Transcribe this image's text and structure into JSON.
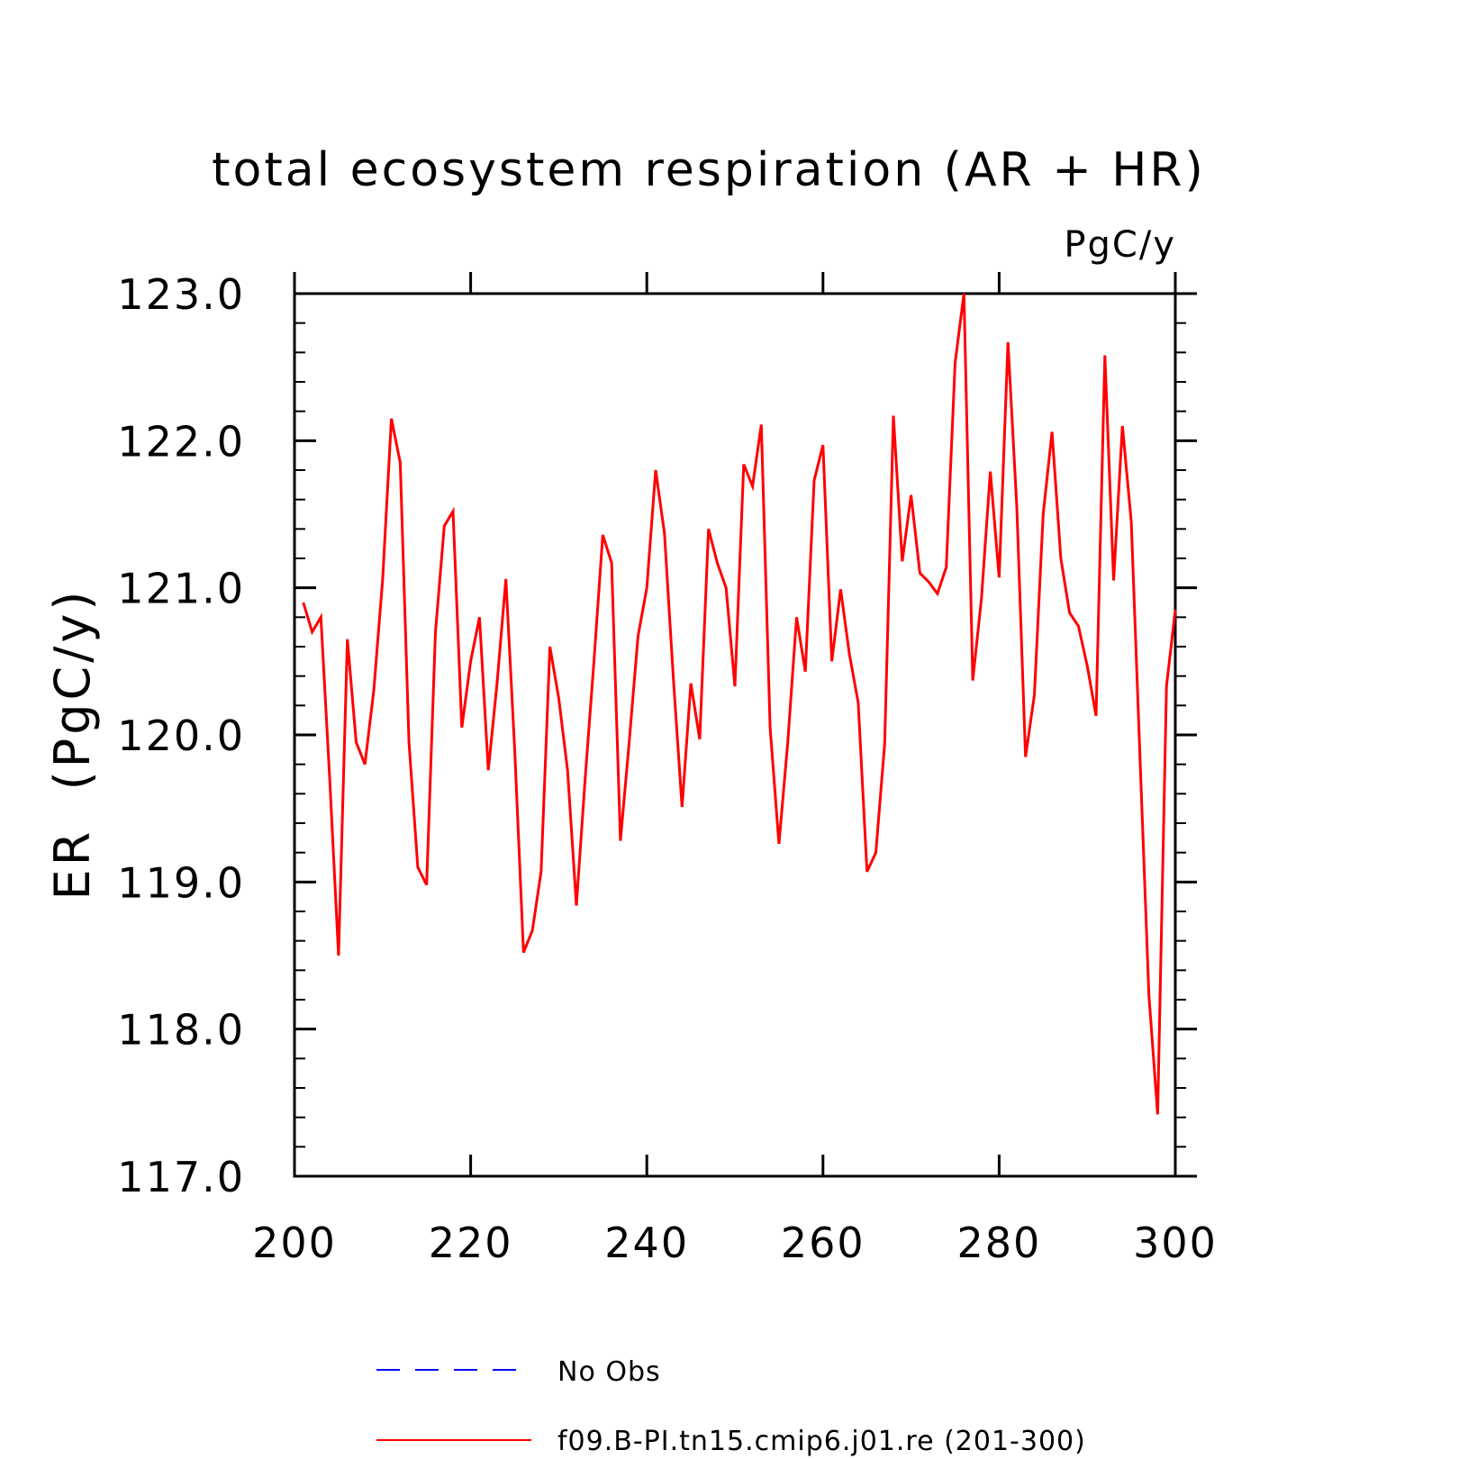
{
  "chart_data": {
    "type": "line",
    "title": "total ecosystem respiration (AR + HR)",
    "units_label": "PgC/y",
    "ylabel": "ER  (PgC/y)",
    "xlabel": "",
    "xlim": [
      200,
      300
    ],
    "ylim": [
      117.0,
      123.0
    ],
    "x_ticks": [
      "200",
      "220",
      "240",
      "260",
      "280",
      "300"
    ],
    "y_ticks": [
      "117.0",
      "118.0",
      "119.0",
      "120.0",
      "121.0",
      "122.0",
      "123.0"
    ],
    "grid": false,
    "legend_position": "bottom",
    "legend": [
      {
        "label": "No Obs",
        "color": "#0000ff",
        "style": "dashed"
      },
      {
        "label": "f09.B-PI.tn15.cmip6.j01.re (201-300)",
        "color": "#ff0000",
        "style": "solid"
      }
    ],
    "series": [
      {
        "name": "f09.B-PI.tn15.cmip6.j01.re (201-300)",
        "color": "#ff0000",
        "x": [
          201,
          202,
          203,
          204,
          205,
          206,
          207,
          208,
          209,
          210,
          211,
          212,
          213,
          214,
          215,
          216,
          217,
          218,
          219,
          220,
          221,
          222,
          223,
          224,
          225,
          226,
          227,
          228,
          229,
          230,
          231,
          232,
          233,
          234,
          235,
          236,
          237,
          238,
          239,
          240,
          241,
          242,
          243,
          244,
          245,
          246,
          247,
          248,
          249,
          250,
          251,
          252,
          253,
          254,
          255,
          256,
          257,
          258,
          259,
          260,
          261,
          262,
          263,
          264,
          265,
          266,
          267,
          268,
          269,
          270,
          271,
          272,
          273,
          274,
          275,
          276,
          277,
          278,
          279,
          280,
          281,
          282,
          283,
          284,
          285,
          286,
          287,
          288,
          289,
          290,
          291,
          292,
          293,
          294,
          295,
          296,
          297,
          298,
          299,
          300
        ],
        "values": [
          120.9,
          120.7,
          120.8,
          119.7,
          118.5,
          120.65,
          119.95,
          119.8,
          120.3,
          121.05,
          122.15,
          121.85,
          119.95,
          119.1,
          118.98,
          120.7,
          121.42,
          121.52,
          120.05,
          120.5,
          120.8,
          119.76,
          120.35,
          121.06,
          119.9,
          118.52,
          118.67,
          119.07,
          120.6,
          120.25,
          119.76,
          118.84,
          119.7,
          120.5,
          121.36,
          121.17,
          119.28,
          119.95,
          120.67,
          121.0,
          121.8,
          121.37,
          120.4,
          119.51,
          120.35,
          119.97,
          121.4,
          121.17,
          121.0,
          120.33,
          121.84,
          121.69,
          122.11,
          120.05,
          119.26,
          119.95,
          120.8,
          120.43,
          121.73,
          121.97,
          120.5,
          120.99,
          120.55,
          120.22,
          119.07,
          119.2,
          119.94,
          122.17,
          121.18,
          121.63,
          121.1,
          121.04,
          120.96,
          121.14,
          122.53,
          123.0,
          120.37,
          120.93,
          121.79,
          121.07,
          122.67,
          121.55,
          119.85,
          120.27,
          121.5,
          122.06,
          121.2,
          120.83,
          120.74,
          120.47,
          120.13,
          122.58,
          121.05,
          122.1,
          121.45,
          119.83,
          118.23,
          117.42,
          120.33,
          120.85
        ]
      }
    ]
  }
}
